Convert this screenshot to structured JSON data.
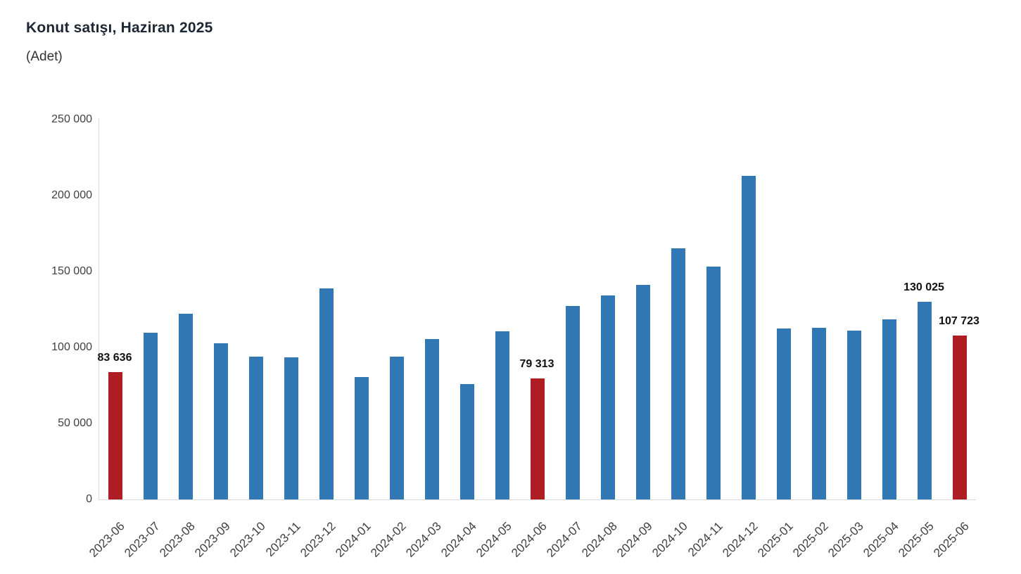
{
  "header": {
    "title": "Konut satışı, Haziran 2025",
    "subtitle": "(Adet)"
  },
  "chart_data": {
    "type": "bar",
    "title": "Konut satışı, Haziran 2025",
    "unit_label": "(Adet)",
    "xlabel": "",
    "ylabel": "",
    "ylim": [
      0,
      250000
    ],
    "grid": "off",
    "legend": "none",
    "x_tick_rotation": -45,
    "categories": [
      "2023-06",
      "2023-07",
      "2023-08",
      "2023-09",
      "2023-10",
      "2023-11",
      "2023-12",
      "2024-01",
      "2024-02",
      "2024-03",
      "2024-04",
      "2024-05",
      "2024-06",
      "2024-07",
      "2024-08",
      "2024-09",
      "2024-10",
      "2024-11",
      "2024-12",
      "2025-01",
      "2025-02",
      "2025-03",
      "2025-04",
      "2025-05",
      "2025-06"
    ],
    "values": [
      83636,
      109548,
      122091,
      102656,
      93761,
      93514,
      138577,
      80308,
      93902,
      105476,
      75569,
      110588,
      79313,
      127088,
      134155,
      140919,
      165138,
      153014,
      212637,
      112173,
      112818,
      110795,
      118359,
      130025,
      107723
    ],
    "highlight_indices": [
      0,
      12,
      24
    ],
    "colors": {
      "bar": "#3178B4",
      "highlight": "#AE1C24",
      "axis_line": "#d9d9d9",
      "tick_text": "#3f3f3f",
      "data_label_text": "#111111"
    },
    "yticks": [
      {
        "value": 0,
        "label": "0"
      },
      {
        "value": 50000,
        "label": "50 000"
      },
      {
        "value": 100000,
        "label": "100 000"
      },
      {
        "value": 150000,
        "label": "150 000"
      },
      {
        "value": 200000,
        "label": "200 000"
      },
      {
        "value": 250000,
        "label": "250 000"
      }
    ],
    "data_labels": [
      {
        "index": 0,
        "text": "83 636"
      },
      {
        "index": 12,
        "text": "79 313"
      },
      {
        "index": 23,
        "text": "130 025"
      },
      {
        "index": 24,
        "text": "107 723"
      }
    ]
  }
}
